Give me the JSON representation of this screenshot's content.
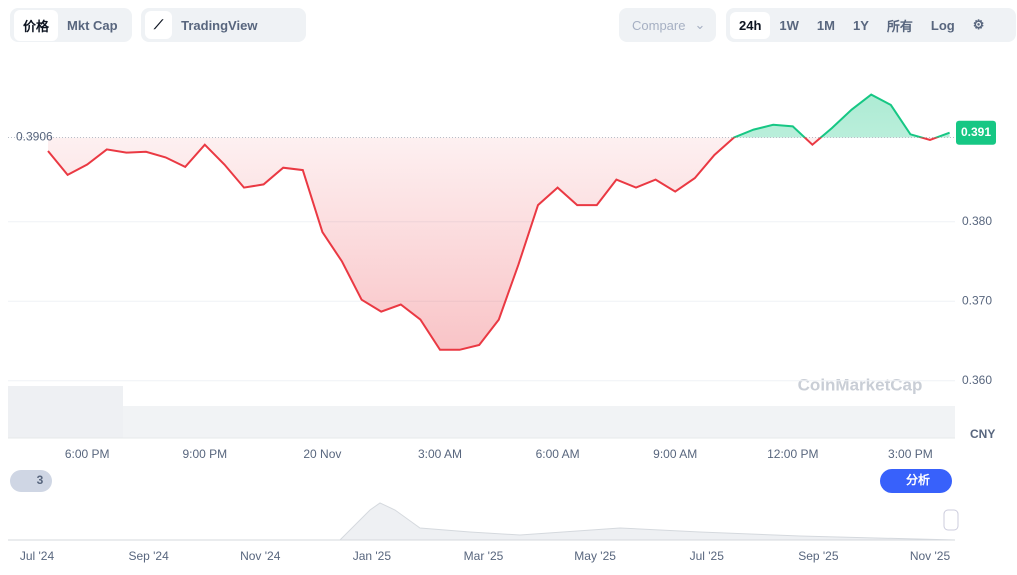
{
  "ui": {
    "price_tab": "价格",
    "mcap_tab": "Mkt Cap",
    "tradingview": "TradingView",
    "compare": "Compare",
    "ranges": [
      "24h",
      "1W",
      "1M",
      "1Y",
      "所有"
    ],
    "log": "Log",
    "currency": "CNY",
    "watermark": "CoinMarketCap",
    "badge": "3",
    "analyze": "分析",
    "navigator_labels": [
      "Jul '24",
      "Sep '24",
      "Nov '24",
      "Jan '25",
      "Mar '25",
      "May '25",
      "Jul '25",
      "Sep '25",
      "Nov '25"
    ]
  },
  "chart_data": {
    "type": "line",
    "categories": [
      null,
      null,
      "6:00 PM",
      null,
      null,
      null,
      null,
      null,
      "9:00 PM",
      null,
      null,
      null,
      null,
      null,
      "20 Nov",
      null,
      null,
      null,
      null,
      null,
      "3:00 AM",
      null,
      null,
      null,
      null,
      null,
      "6:00 AM",
      null,
      null,
      null,
      null,
      null,
      "9:00 AM",
      null,
      null,
      null,
      null,
      null,
      "12:00 PM",
      null,
      null,
      null,
      null,
      null,
      "3:00 PM",
      null,
      null
    ],
    "values": [
      0.3889,
      0.3859,
      0.3872,
      0.3891,
      0.3887,
      0.3888,
      0.3881,
      0.3869,
      0.3897,
      0.3872,
      0.3843,
      0.3847,
      0.3868,
      0.3865,
      0.3787,
      0.375,
      0.3702,
      0.3687,
      0.3696,
      0.3677,
      0.3639,
      0.3639,
      0.3645,
      0.3677,
      0.3746,
      0.3821,
      0.3843,
      0.3821,
      0.3821,
      0.3853,
      0.3843,
      0.3853,
      0.3838,
      0.3855,
      0.3884,
      0.3906,
      0.3916,
      0.3922,
      0.392,
      0.3897,
      0.3918,
      0.3941,
      0.396,
      0.3947,
      0.391,
      0.3903,
      0.3912
    ],
    "last_value_label": "0.391",
    "baseline": 0.3906,
    "up_color": "#16c784",
    "down_color": "#ea3943",
    "ylim": [
      0.3528,
      0.4001
    ],
    "yticks": [
      {
        "value": 0.36,
        "label": "0.360"
      },
      {
        "value": 0.37,
        "label": "0.370"
      },
      {
        "value": 0.38,
        "label": "0.380"
      }
    ],
    "grid": true
  }
}
